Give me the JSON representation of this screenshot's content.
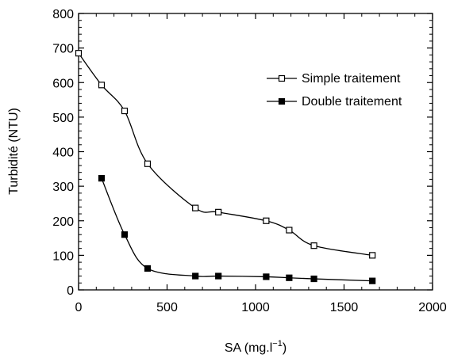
{
  "chart_data": {
    "type": "line",
    "xlabel": "SA (mg.l",
    "xlabel_sup": "−1",
    "xlabel_suffix": ")",
    "ylabel": "Turbidité (NTU)",
    "xlim": [
      0,
      2000
    ],
    "ylim": [
      0,
      800
    ],
    "xticks": [
      "0",
      "500",
      "1000",
      "1500",
      "2000"
    ],
    "yticks": [
      "0",
      "100",
      "200",
      "300",
      "400",
      "500",
      "600",
      "700",
      "800"
    ],
    "grid": false,
    "legend_position": "top-right",
    "series": [
      {
        "name": "Simple traitement",
        "marker": "open-square",
        "x": [
          0,
          130,
          260,
          390,
          660,
          790,
          1060,
          1190,
          1330,
          1660
        ],
        "y": [
          685,
          593,
          518,
          365,
          237,
          225,
          200,
          173,
          128,
          100
        ]
      },
      {
        "name": "Double traitement",
        "marker": "filled-square",
        "x": [
          130,
          260,
          390,
          660,
          790,
          1060,
          1190,
          1330,
          1660
        ],
        "y": [
          323,
          160,
          62,
          40,
          40,
          38,
          35,
          32,
          26
        ]
      }
    ]
  }
}
